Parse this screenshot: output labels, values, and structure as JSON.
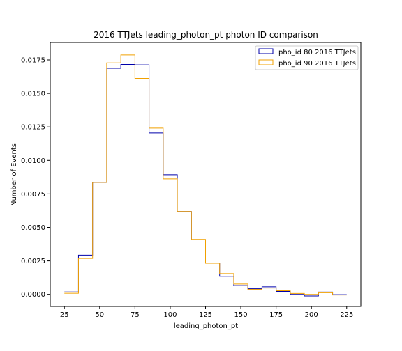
{
  "chart_data": {
    "type": "step",
    "title": "2016 TTJets leading_photon_pt photon ID comparison",
    "xlabel": "leading_photon_pt",
    "ylabel": "Number of Events",
    "xlim": [
      15,
      235
    ],
    "ylim": [
      -0.0009,
      0.0188
    ],
    "xticks": [
      25,
      50,
      75,
      100,
      125,
      150,
      175,
      200,
      225
    ],
    "yticks": [
      0.0,
      0.0025,
      0.005,
      0.0075,
      0.01,
      0.0125,
      0.015,
      0.0175
    ],
    "ytick_labels": [
      "0.0000",
      "0.0025",
      "0.0050",
      "0.0075",
      "0.0100",
      "0.0125",
      "0.0150",
      "0.0175"
    ],
    "bin_edges": [
      25,
      35,
      45,
      55,
      65,
      75,
      85,
      95,
      105,
      115,
      125,
      135,
      145,
      155,
      165,
      175,
      185,
      195,
      205,
      215,
      225
    ],
    "series": [
      {
        "name": "pho_id 80 2016 TTJets",
        "color": "#0000aa",
        "values": [
          0.00018,
          0.00293,
          0.00836,
          0.01688,
          0.01716,
          0.01713,
          0.01205,
          0.00893,
          0.00618,
          0.00408,
          0.00232,
          0.00135,
          0.00065,
          0.00042,
          0.00056,
          0.00022,
          0.0,
          -0.00012,
          0.00017,
          -2e-05
        ]
      },
      {
        "name": "pho_id 90 2016 TTJets",
        "color": "#f0a000",
        "values": [
          8e-05,
          0.00268,
          0.00836,
          0.01728,
          0.01787,
          0.01612,
          0.01241,
          0.00862,
          0.00618,
          0.0041,
          0.00232,
          0.00155,
          0.00077,
          0.00037,
          0.00047,
          0.00027,
          7e-05,
          0.0,
          0.00012,
          -5e-05
        ]
      }
    ],
    "legend_position": "upper right",
    "grid": false
  }
}
